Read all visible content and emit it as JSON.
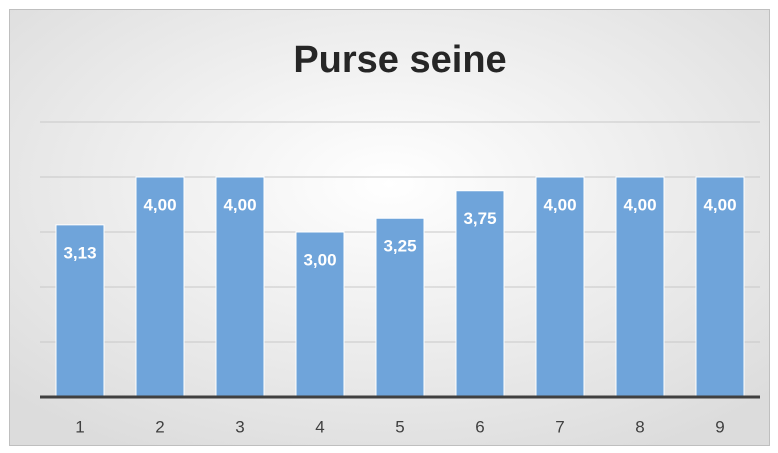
{
  "chart_data": {
    "type": "bar",
    "title": "Purse seine",
    "categories": [
      "1",
      "2",
      "3",
      "4",
      "5",
      "6",
      "7",
      "8",
      "9"
    ],
    "values": [
      3.13,
      4,
      4,
      3,
      3.25,
      3.75,
      4,
      4,
      4
    ],
    "value_labels": [
      "3,13",
      "4,00",
      "4,00",
      "3,00",
      "3,25",
      "3,75",
      "4,00",
      "4,00",
      "4,00"
    ],
    "color": "#6fa4da",
    "ylim": [
      0,
      5
    ],
    "yticks": [
      0,
      1,
      2,
      3,
      4,
      5
    ],
    "grid": true
  }
}
